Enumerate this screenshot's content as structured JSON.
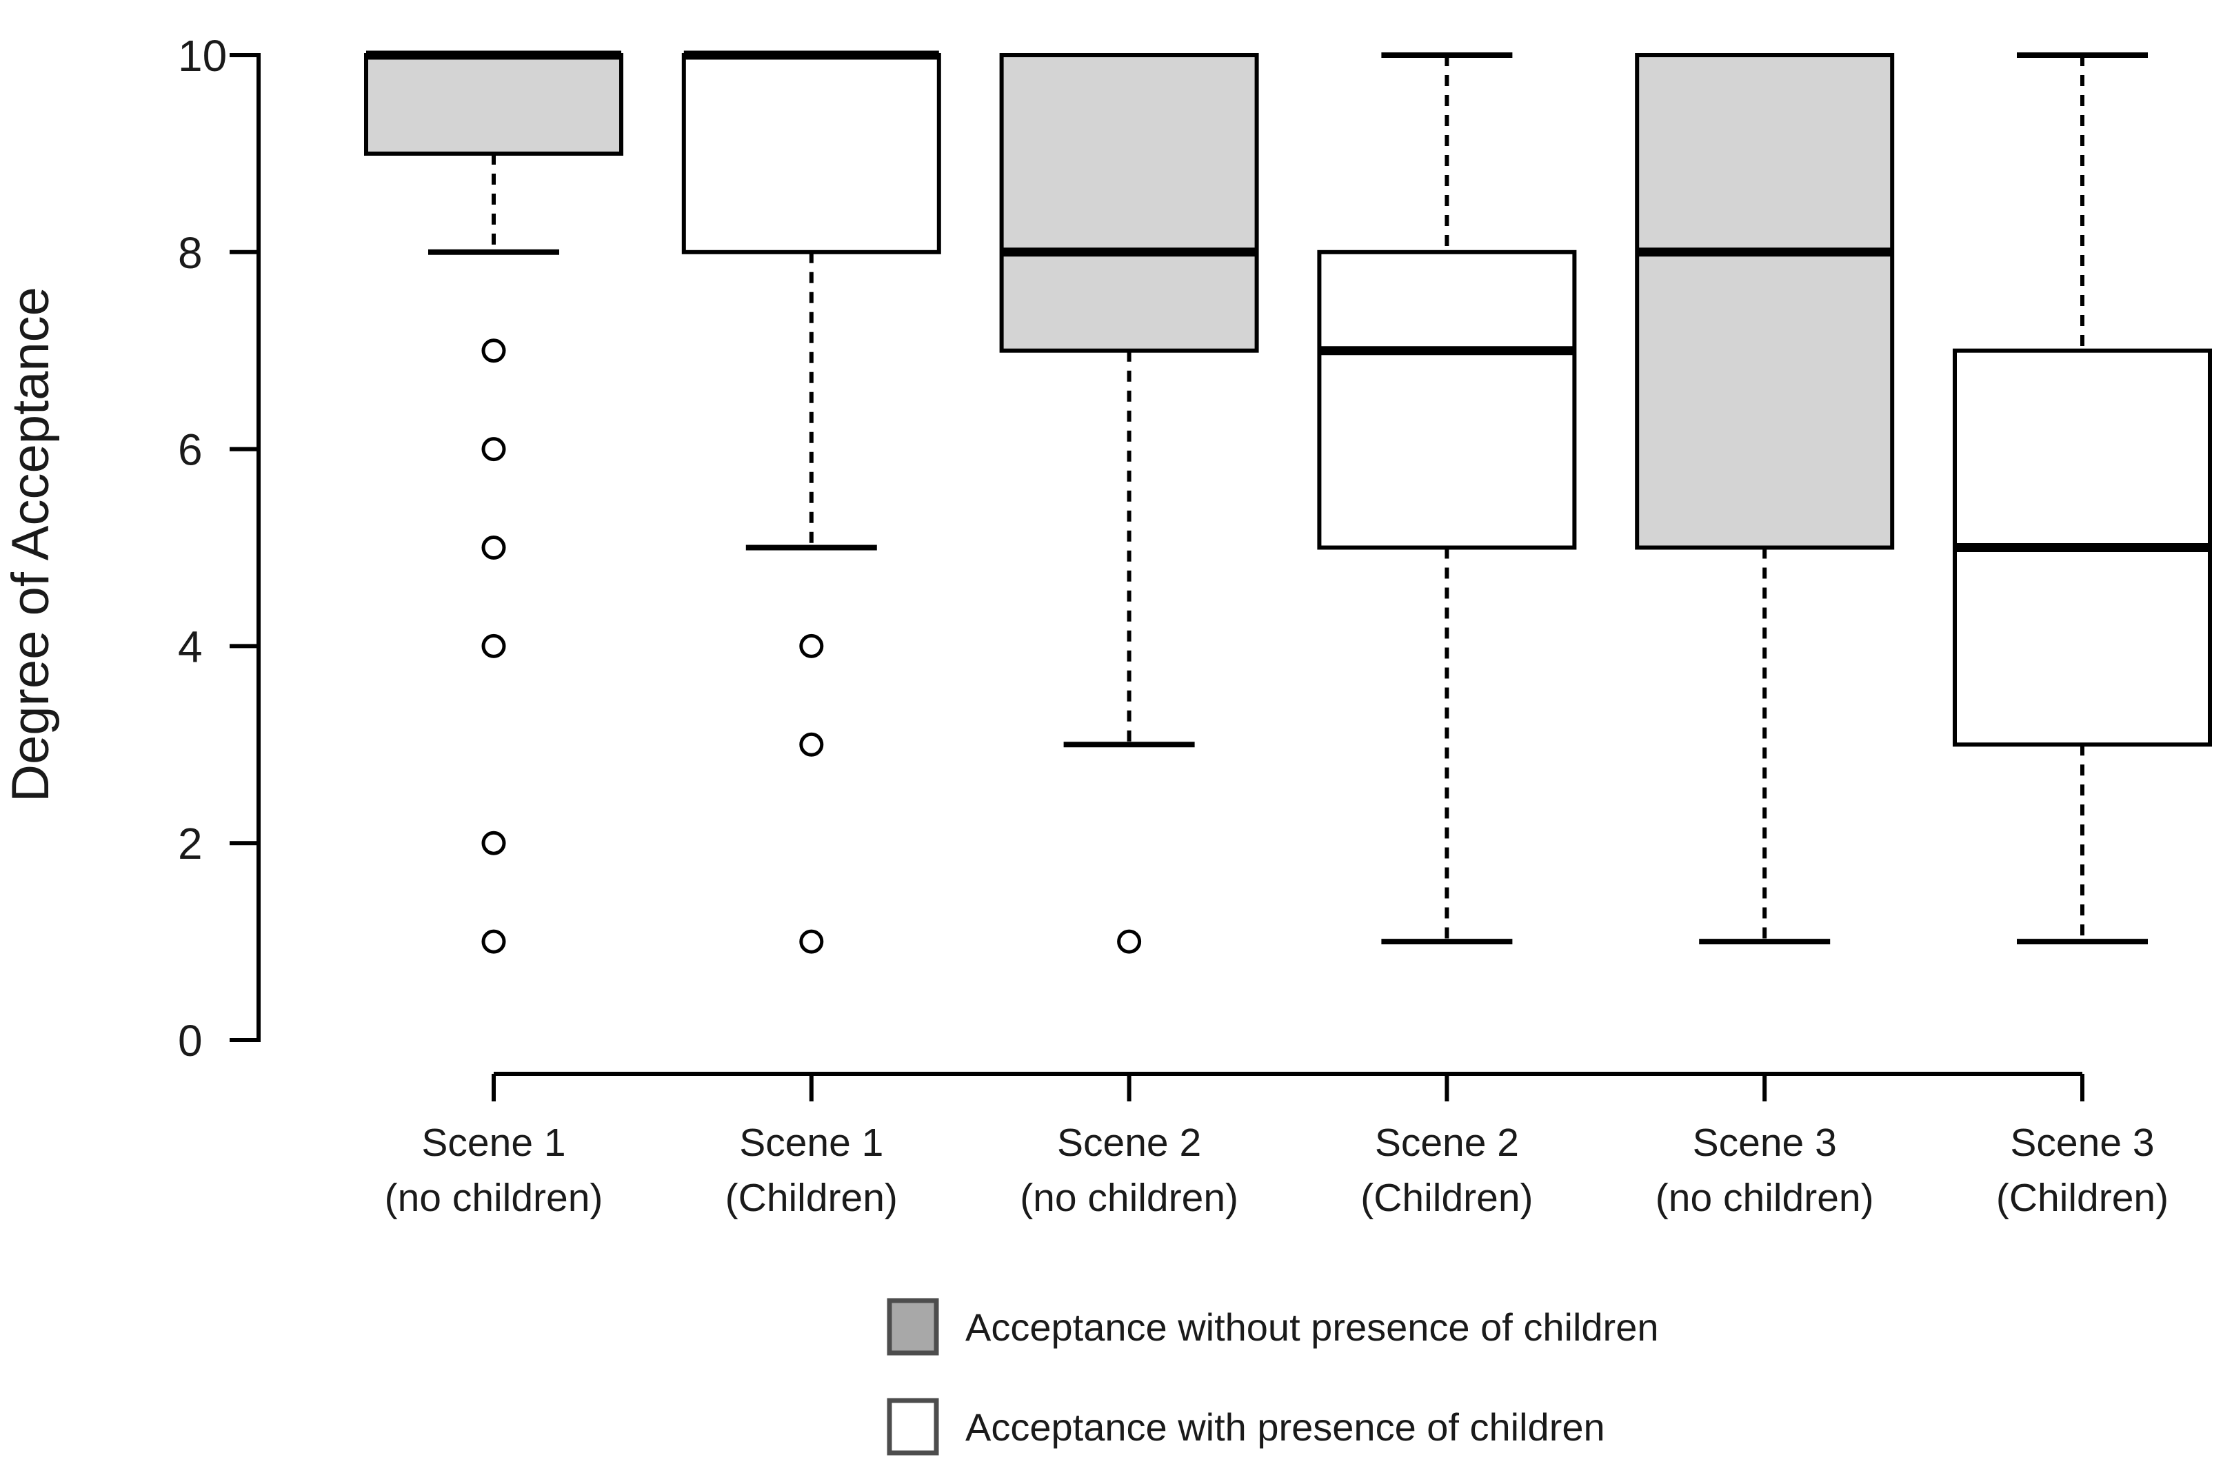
{
  "chart_data": {
    "type": "boxplot",
    "title": "",
    "xlabel": "",
    "ylabel": "Degree of Acceptance",
    "ylim": [
      0,
      10
    ],
    "yticks": [
      0,
      2,
      4,
      6,
      8,
      10
    ],
    "grid": false,
    "legend_position": "bottom",
    "categories": [
      {
        "line1": "Scene 1",
        "line2": "(no children)"
      },
      {
        "line1": "Scene 1",
        "line2": "(Children)"
      },
      {
        "line1": "Scene 2",
        "line2": "(no children)"
      },
      {
        "line1": "Scene 2",
        "line2": "(Children)"
      },
      {
        "line1": "Scene 3",
        "line2": "(no children)"
      },
      {
        "line1": "Scene 3",
        "line2": "(Children)"
      }
    ],
    "boxes": [
      {
        "scene": "Scene 1",
        "condition": "(no children)",
        "group": "without",
        "whisker_low": 8,
        "q1": 9,
        "median": 10,
        "q3": 10,
        "whisker_high": 10,
        "outliers": [
          7,
          6,
          5,
          4,
          2,
          1
        ]
      },
      {
        "scene": "Scene 1",
        "condition": "(Children)",
        "group": "with",
        "whisker_low": 5,
        "q1": 8,
        "median": 10,
        "q3": 10,
        "whisker_high": 10,
        "outliers": [
          4,
          3,
          1
        ]
      },
      {
        "scene": "Scene 2",
        "condition": "(no children)",
        "group": "without",
        "whisker_low": 3,
        "q1": 7,
        "median": 8,
        "q3": 10,
        "whisker_high": 10,
        "outliers": [
          1
        ]
      },
      {
        "scene": "Scene 2",
        "condition": "(Children)",
        "group": "with",
        "whisker_low": 1,
        "q1": 5,
        "median": 7,
        "q3": 8,
        "whisker_high": 10,
        "outliers": []
      },
      {
        "scene": "Scene 3",
        "condition": "(no children)",
        "group": "without",
        "whisker_low": 1,
        "q1": 5,
        "median": 8,
        "q3": 10,
        "whisker_high": 10,
        "outliers": []
      },
      {
        "scene": "Scene 3",
        "condition": "(Children)",
        "group": "with",
        "whisker_low": 1,
        "q1": 3,
        "median": 5,
        "q3": 7,
        "whisker_high": 10,
        "outliers": []
      }
    ],
    "legend": [
      {
        "key": "without",
        "label": "Acceptance without presence of children",
        "swatch_fill": "#a8a8a8"
      },
      {
        "key": "with",
        "label": "Acceptance with presence of children",
        "swatch_fill": "#ffffff"
      }
    ],
    "colors": {
      "box_fill_without": "#d4d4d4",
      "box_fill_with": "#ffffff",
      "line": "#000000",
      "text": "#1a1a1a",
      "legend_swatch_border": "#4d4d4d"
    }
  }
}
